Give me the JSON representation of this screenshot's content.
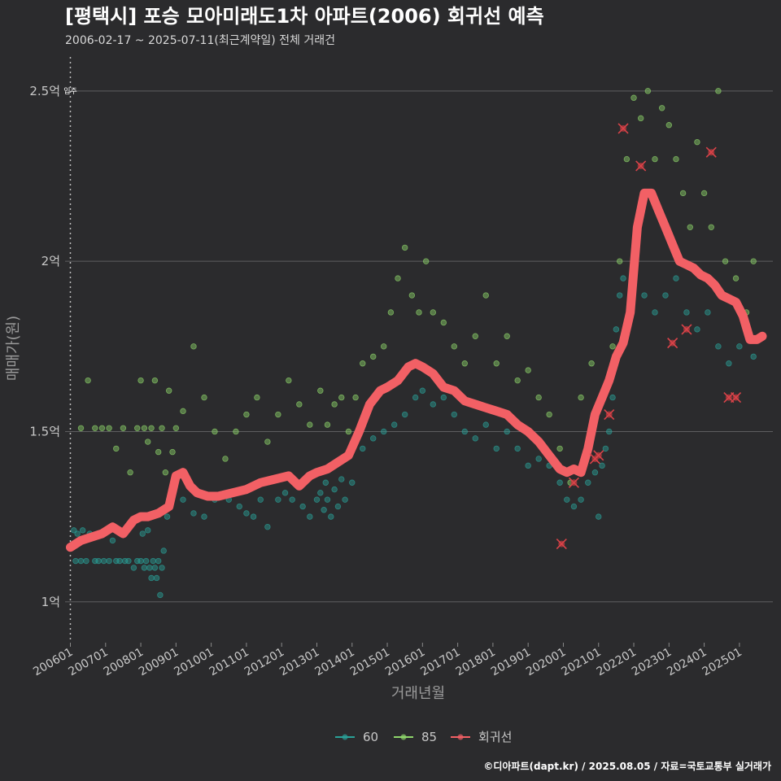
{
  "chart_data": {
    "type": "scatter",
    "title": "[평택시] 포승 모아미래도1차 아파트(2006) 회귀선 예측",
    "subtitle": "2006-02-17 ~ 2025-07-11(최근계약일) 전체 거래건",
    "xlabel": "거래년월",
    "ylabel": "매매가(원)",
    "ylim": [
      0.88,
      2.6
    ],
    "y_ticks": [
      {
        "value": 1.0,
        "label": "1억"
      },
      {
        "value": 1.5,
        "label": "1.5억"
      },
      {
        "value": 2.0,
        "label": "2억"
      },
      {
        "value": 2.5,
        "label": "2.5억"
      }
    ],
    "xlim": [
      2005.85,
      2025.95
    ],
    "x_ticks": [
      {
        "value": 2006.0,
        "label": "200601"
      },
      {
        "value": 2007.0,
        "label": "200701"
      },
      {
        "value": 2008.0,
        "label": "200801"
      },
      {
        "value": 2009.0,
        "label": "200901"
      },
      {
        "value": 2010.0,
        "label": "201001"
      },
      {
        "value": 2011.0,
        "label": "201101"
      },
      {
        "value": 2012.0,
        "label": "201201"
      },
      {
        "value": 2013.0,
        "label": "201301"
      },
      {
        "value": 2014.0,
        "label": "201401"
      },
      {
        "value": 2015.0,
        "label": "201501"
      },
      {
        "value": 2016.0,
        "label": "201601"
      },
      {
        "value": 2017.0,
        "label": "201701"
      },
      {
        "value": 2018.0,
        "label": "201801"
      },
      {
        "value": 2019.0,
        "label": "201901"
      },
      {
        "value": 2020.0,
        "label": "202001"
      },
      {
        "value": 2021.0,
        "label": "202101"
      },
      {
        "value": 2022.0,
        "label": "202201"
      },
      {
        "value": 2023.0,
        "label": "202301"
      },
      {
        "value": 2024.0,
        "label": "202401"
      },
      {
        "value": 2025.0,
        "label": "202501"
      }
    ],
    "annotation": {
      "x": 2006.0,
      "label": "입주"
    },
    "series": [
      {
        "name": "60",
        "color": "#2aa198",
        "points": [
          [
            2006.1,
            1.21
          ],
          [
            2006.15,
            1.12
          ],
          [
            2006.2,
            1.2
          ],
          [
            2006.3,
            1.12
          ],
          [
            2006.35,
            1.21
          ],
          [
            2006.45,
            1.12
          ],
          [
            2006.55,
            1.2
          ],
          [
            2006.7,
            1.12
          ],
          [
            2006.8,
            1.12
          ],
          [
            2006.95,
            1.12
          ],
          [
            2007.1,
            1.12
          ],
          [
            2007.2,
            1.18
          ],
          [
            2007.3,
            1.12
          ],
          [
            2007.4,
            1.12
          ],
          [
            2007.55,
            1.12
          ],
          [
            2007.65,
            1.12
          ],
          [
            2007.8,
            1.1
          ],
          [
            2007.9,
            1.12
          ],
          [
            2008.0,
            1.12
          ],
          [
            2008.05,
            1.2
          ],
          [
            2008.1,
            1.1
          ],
          [
            2008.15,
            1.12
          ],
          [
            2008.2,
            1.21
          ],
          [
            2008.25,
            1.1
          ],
          [
            2008.3,
            1.07
          ],
          [
            2008.35,
            1.12
          ],
          [
            2008.4,
            1.1
          ],
          [
            2008.45,
            1.07
          ],
          [
            2008.5,
            1.12
          ],
          [
            2008.55,
            1.02
          ],
          [
            2008.6,
            1.1
          ],
          [
            2008.65,
            1.15
          ],
          [
            2008.75,
            1.25
          ],
          [
            2008.8,
            1.3
          ],
          [
            2009.2,
            1.3
          ],
          [
            2009.5,
            1.26
          ],
          [
            2009.8,
            1.25
          ],
          [
            2010.1,
            1.3
          ],
          [
            2010.5,
            1.3
          ],
          [
            2010.8,
            1.28
          ],
          [
            2011.0,
            1.26
          ],
          [
            2011.2,
            1.25
          ],
          [
            2011.4,
            1.3
          ],
          [
            2011.6,
            1.22
          ],
          [
            2011.9,
            1.3
          ],
          [
            2012.1,
            1.32
          ],
          [
            2012.3,
            1.3
          ],
          [
            2012.6,
            1.28
          ],
          [
            2012.8,
            1.25
          ],
          [
            2013.0,
            1.3
          ],
          [
            2013.1,
            1.32
          ],
          [
            2013.2,
            1.27
          ],
          [
            2013.25,
            1.35
          ],
          [
            2013.3,
            1.3
          ],
          [
            2013.4,
            1.25
          ],
          [
            2013.5,
            1.33
          ],
          [
            2013.6,
            1.28
          ],
          [
            2013.7,
            1.36
          ],
          [
            2013.8,
            1.3
          ],
          [
            2014.0,
            1.35
          ],
          [
            2014.3,
            1.45
          ],
          [
            2014.6,
            1.48
          ],
          [
            2014.9,
            1.5
          ],
          [
            2015.2,
            1.52
          ],
          [
            2015.5,
            1.55
          ],
          [
            2015.8,
            1.6
          ],
          [
            2016.0,
            1.62
          ],
          [
            2016.3,
            1.58
          ],
          [
            2016.6,
            1.6
          ],
          [
            2016.9,
            1.55
          ],
          [
            2017.2,
            1.5
          ],
          [
            2017.5,
            1.48
          ],
          [
            2017.8,
            1.52
          ],
          [
            2018.1,
            1.45
          ],
          [
            2018.4,
            1.5
          ],
          [
            2018.7,
            1.45
          ],
          [
            2019.0,
            1.4
          ],
          [
            2019.3,
            1.42
          ],
          [
            2019.6,
            1.4
          ],
          [
            2019.9,
            1.35
          ],
          [
            2020.1,
            1.3
          ],
          [
            2020.3,
            1.28
          ],
          [
            2020.5,
            1.3
          ],
          [
            2020.7,
            1.35
          ],
          [
            2020.9,
            1.38
          ],
          [
            2021.0,
            1.25
          ],
          [
            2021.1,
            1.4
          ],
          [
            2021.2,
            1.45
          ],
          [
            2021.3,
            1.5
          ],
          [
            2021.4,
            1.6
          ],
          [
            2021.5,
            1.8
          ],
          [
            2021.6,
            1.9
          ],
          [
            2021.7,
            1.95
          ],
          [
            2022.0,
            2.0
          ],
          [
            2022.3,
            1.9
          ],
          [
            2022.6,
            1.85
          ],
          [
            2022.9,
            1.9
          ],
          [
            2023.2,
            1.95
          ],
          [
            2023.5,
            1.85
          ],
          [
            2023.8,
            1.8
          ],
          [
            2024.1,
            1.85
          ],
          [
            2024.4,
            1.75
          ],
          [
            2024.7,
            1.7
          ],
          [
            2025.0,
            1.75
          ],
          [
            2025.2,
            1.8
          ],
          [
            2025.4,
            1.72
          ]
        ]
      },
      {
        "name": "85",
        "color": "#8fd66b",
        "points": [
          [
            2006.3,
            1.51
          ],
          [
            2006.5,
            1.65
          ],
          [
            2006.7,
            1.51
          ],
          [
            2006.9,
            1.51
          ],
          [
            2007.1,
            1.51
          ],
          [
            2007.3,
            1.45
          ],
          [
            2007.5,
            1.51
          ],
          [
            2007.7,
            1.38
          ],
          [
            2007.9,
            1.51
          ],
          [
            2008.0,
            1.65
          ],
          [
            2008.1,
            1.51
          ],
          [
            2008.2,
            1.47
          ],
          [
            2008.3,
            1.51
          ],
          [
            2008.4,
            1.65
          ],
          [
            2008.5,
            1.44
          ],
          [
            2008.6,
            1.51
          ],
          [
            2008.7,
            1.38
          ],
          [
            2008.8,
            1.62
          ],
          [
            2008.9,
            1.44
          ],
          [
            2009.0,
            1.51
          ],
          [
            2009.2,
            1.56
          ],
          [
            2009.5,
            1.75
          ],
          [
            2009.8,
            1.6
          ],
          [
            2010.1,
            1.5
          ],
          [
            2010.4,
            1.42
          ],
          [
            2010.7,
            1.5
          ],
          [
            2011.0,
            1.55
          ],
          [
            2011.3,
            1.6
          ],
          [
            2011.6,
            1.47
          ],
          [
            2011.9,
            1.55
          ],
          [
            2012.2,
            1.65
          ],
          [
            2012.5,
            1.58
          ],
          [
            2012.8,
            1.52
          ],
          [
            2013.1,
            1.62
          ],
          [
            2013.3,
            1.52
          ],
          [
            2013.5,
            1.58
          ],
          [
            2013.7,
            1.6
          ],
          [
            2013.9,
            1.5
          ],
          [
            2014.1,
            1.6
          ],
          [
            2014.3,
            1.7
          ],
          [
            2014.6,
            1.72
          ],
          [
            2014.9,
            1.75
          ],
          [
            2015.1,
            1.85
          ],
          [
            2015.3,
            1.95
          ],
          [
            2015.5,
            2.04
          ],
          [
            2015.7,
            1.9
          ],
          [
            2015.9,
            1.85
          ],
          [
            2016.1,
            2.0
          ],
          [
            2016.3,
            1.85
          ],
          [
            2016.6,
            1.82
          ],
          [
            2016.9,
            1.75
          ],
          [
            2017.2,
            1.7
          ],
          [
            2017.5,
            1.78
          ],
          [
            2017.8,
            1.9
          ],
          [
            2018.1,
            1.7
          ],
          [
            2018.4,
            1.78
          ],
          [
            2018.7,
            1.65
          ],
          [
            2019.0,
            1.68
          ],
          [
            2019.3,
            1.6
          ],
          [
            2019.6,
            1.55
          ],
          [
            2019.9,
            1.45
          ],
          [
            2020.2,
            1.35
          ],
          [
            2020.5,
            1.6
          ],
          [
            2020.8,
            1.7
          ],
          [
            2021.1,
            1.6
          ],
          [
            2021.4,
            1.75
          ],
          [
            2021.6,
            2.0
          ],
          [
            2021.8,
            2.3
          ],
          [
            2022.0,
            2.48
          ],
          [
            2022.2,
            2.42
          ],
          [
            2022.4,
            2.5
          ],
          [
            2022.6,
            2.3
          ],
          [
            2022.8,
            2.45
          ],
          [
            2023.0,
            2.4
          ],
          [
            2023.2,
            2.3
          ],
          [
            2023.4,
            2.2
          ],
          [
            2023.6,
            2.1
          ],
          [
            2023.8,
            2.35
          ],
          [
            2024.0,
            2.2
          ],
          [
            2024.2,
            2.1
          ],
          [
            2024.4,
            2.5
          ],
          [
            2024.6,
            2.0
          ],
          [
            2024.9,
            1.95
          ],
          [
            2025.2,
            1.85
          ],
          [
            2025.4,
            2.0
          ]
        ]
      }
    ],
    "regression": {
      "name": "회귀선",
      "color": "#f26065",
      "x": [
        2006.0,
        2006.3,
        2006.6,
        2006.9,
        2007.2,
        2007.5,
        2007.8,
        2008.0,
        2008.2,
        2008.5,
        2008.8,
        2009.0,
        2009.2,
        2009.4,
        2009.6,
        2009.9,
        2010.2,
        2010.6,
        2011.0,
        2011.4,
        2011.8,
        2012.2,
        2012.5,
        2012.8,
        2013.0,
        2013.3,
        2013.6,
        2013.9,
        2014.2,
        2014.5,
        2014.8,
        2015.0,
        2015.3,
        2015.6,
        2015.8,
        2016.0,
        2016.3,
        2016.6,
        2016.9,
        2017.2,
        2017.5,
        2017.8,
        2018.1,
        2018.4,
        2018.7,
        2019.0,
        2019.3,
        2019.6,
        2019.9,
        2020.1,
        2020.3,
        2020.5,
        2020.7,
        2020.9,
        2021.1,
        2021.3,
        2021.5,
        2021.7,
        2021.9,
        2022.1,
        2022.3,
        2022.5,
        2022.7,
        2022.9,
        2023.1,
        2023.3,
        2023.5,
        2023.7,
        2023.9,
        2024.1,
        2024.3,
        2024.5,
        2024.7,
        2024.9,
        2025.1,
        2025.3,
        2025.5,
        2025.65
      ],
      "y": [
        1.16,
        1.18,
        1.19,
        1.2,
        1.22,
        1.2,
        1.24,
        1.25,
        1.25,
        1.26,
        1.28,
        1.37,
        1.38,
        1.34,
        1.32,
        1.31,
        1.31,
        1.32,
        1.33,
        1.35,
        1.36,
        1.37,
        1.34,
        1.37,
        1.38,
        1.39,
        1.41,
        1.43,
        1.5,
        1.58,
        1.62,
        1.63,
        1.65,
        1.69,
        1.7,
        1.69,
        1.67,
        1.63,
        1.62,
        1.59,
        1.58,
        1.57,
        1.56,
        1.55,
        1.52,
        1.5,
        1.47,
        1.43,
        1.39,
        1.38,
        1.39,
        1.38,
        1.45,
        1.55,
        1.6,
        1.65,
        1.72,
        1.76,
        1.85,
        2.1,
        2.2,
        2.2,
        2.15,
        2.1,
        2.05,
        2.0,
        1.99,
        1.98,
        1.96,
        1.95,
        1.93,
        1.9,
        1.89,
        1.88,
        1.84,
        1.77,
        1.77,
        1.78
      ]
    },
    "outliers": [
      [
        2021.7,
        2.39
      ],
      [
        2022.2,
        2.28
      ],
      [
        2023.1,
        1.76
      ],
      [
        2023.5,
        1.8
      ],
      [
        2024.2,
        2.32
      ],
      [
        2024.7,
        1.6
      ],
      [
        2024.9,
        1.6
      ],
      [
        2019.95,
        1.17
      ],
      [
        2020.3,
        1.35
      ],
      [
        2020.9,
        1.42
      ],
      [
        2021.0,
        1.43
      ],
      [
        2021.3,
        1.55
      ]
    ],
    "legend": {
      "position": "bottom",
      "items": [
        {
          "label": "60",
          "color": "#2aa198"
        },
        {
          "label": "85",
          "color": "#8fd66b"
        },
        {
          "label": "회귀선",
          "color": "#f26065"
        }
      ]
    },
    "caption": "©디아파트(dapt.kr) / 2025.08.05 / 자료=국토교통부 실거래가"
  }
}
